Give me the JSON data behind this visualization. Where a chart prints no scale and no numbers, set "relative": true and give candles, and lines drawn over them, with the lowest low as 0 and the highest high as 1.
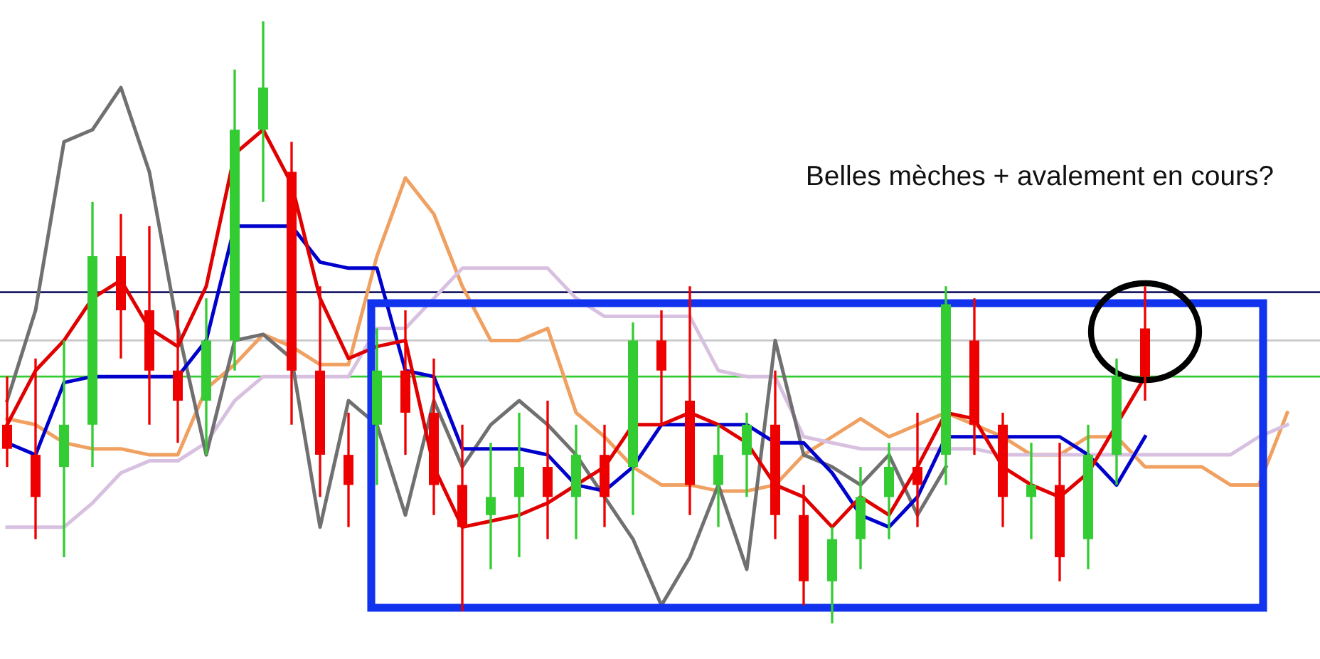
{
  "chart_data": {
    "type": "candlestick",
    "relative": true,
    "legend": false,
    "grid": false,
    "categories": [
      null,
      null,
      null,
      null,
      null,
      null,
      null,
      null,
      null,
      null,
      null,
      null,
      null,
      null,
      null,
      null,
      null,
      null,
      null,
      null,
      null,
      null,
      null,
      null,
      null,
      null,
      null,
      null,
      null,
      null,
      null,
      null,
      null,
      null,
      null,
      null,
      null,
      null,
      null,
      null,
      null,
      null,
      null,
      null,
      null,
      null
    ],
    "ohlc": [
      [
        0.33,
        0.41,
        0.26,
        0.29
      ],
      [
        0.28,
        0.44,
        0.14,
        0.21
      ],
      [
        0.26,
        0.47,
        0.11,
        0.33
      ],
      [
        0.33,
        0.7,
        0.26,
        0.61
      ],
      [
        0.61,
        0.68,
        0.44,
        0.52
      ],
      [
        0.52,
        0.66,
        0.33,
        0.42
      ],
      [
        0.42,
        0.52,
        0.3,
        0.37
      ],
      [
        0.37,
        0.54,
        0.28,
        0.47
      ],
      [
        0.47,
        0.92,
        0.42,
        0.82
      ],
      [
        0.82,
        1,
        0.7,
        0.89
      ],
      [
        0.75,
        0.8,
        0.33,
        0.42
      ],
      [
        0.42,
        0.56,
        0.21,
        0.28
      ],
      [
        0.28,
        0.35,
        0.16,
        0.23
      ],
      [
        0.33,
        0.49,
        0.23,
        0.42
      ],
      [
        0.42,
        0.52,
        0.28,
        0.35
      ],
      [
        0.35,
        0.44,
        0.18,
        0.23
      ],
      [
        0.23,
        0.33,
        0.02,
        0.16
      ],
      [
        0.18,
        0.3,
        0.09,
        0.21
      ],
      [
        0.21,
        0.35,
        0.11,
        0.26
      ],
      [
        0.26,
        0.37,
        0.14,
        0.21
      ],
      [
        0.21,
        0.33,
        0.14,
        0.28
      ],
      [
        0.28,
        0.33,
        0.16,
        0.21
      ],
      [
        0.26,
        0.5,
        0.18,
        0.47
      ],
      [
        0.47,
        0.52,
        0.33,
        0.42
      ],
      [
        0.37,
        0.56,
        0.18,
        0.23
      ],
      [
        0.23,
        0.33,
        0.16,
        0.28
      ],
      [
        0.28,
        0.35,
        0.21,
        0.33
      ],
      [
        0.33,
        0.42,
        0.14,
        0.18
      ],
      [
        0.18,
        0.23,
        0.03,
        0.07
      ],
      [
        0.07,
        0.16,
        0,
        0.14
      ],
      [
        0.14,
        0.26,
        0.09,
        0.21
      ],
      [
        0.21,
        0.3,
        0.14,
        0.26
      ],
      [
        0.26,
        0.35,
        0.16,
        0.23
      ],
      [
        0.28,
        0.56,
        0.23,
        0.53
      ],
      [
        0.47,
        0.54,
        0.28,
        0.33
      ],
      [
        0.33,
        0.35,
        0.16,
        0.21
      ],
      [
        0.21,
        0.3,
        0.14,
        0.23
      ],
      [
        0.23,
        0.3,
        0.07,
        0.11
      ],
      [
        0.14,
        0.33,
        0.09,
        0.28
      ],
      [
        0.28,
        0.44,
        0.23,
        0.41
      ],
      [
        0.49,
        0.56,
        0.37,
        0.41
      ],
      null,
      null,
      null,
      null,
      null
    ],
    "colors": [
      "#ee0000",
      "#ee0000",
      "#33cc33",
      "#33cc33",
      "#ee0000",
      "#ee0000",
      "#ee0000",
      "#33cc33",
      "#33cc33",
      "#33cc33",
      "#ee0000",
      "#ee0000",
      "#ee0000",
      "#33cc33",
      "#ee0000",
      "#ee0000",
      "#ee0000",
      "#33cc33",
      "#33cc33",
      "#ee0000",
      "#33cc33",
      "#ee0000",
      "#33cc33",
      "#ee0000",
      "#ee0000",
      "#33cc33",
      "#33cc33",
      "#ee0000",
      "#ee0000",
      "#33cc33",
      "#33cc33",
      "#33cc33",
      "#ee0000",
      "#33cc33",
      "#ee0000",
      "#ee0000",
      "#33cc33",
      "#ee0000",
      "#33cc33",
      "#33cc33",
      "#ee0000",
      null,
      null,
      null,
      null,
      null
    ],
    "series": [
      {
        "type": "line",
        "color": "#f0a060",
        "values": [
          0.34,
          0.33,
          0.3,
          0.29,
          0.29,
          0.28,
          0.28,
          0.39,
          0.43,
          0.48,
          0.46,
          0.43,
          0.43,
          0.61,
          0.74,
          0.68,
          0.56,
          0.47,
          0.47,
          0.49,
          0.35,
          0.31,
          0.26,
          0.23,
          0.23,
          0.22,
          0.22,
          0.23,
          0.28,
          0.31,
          0.34,
          0.31,
          0.33,
          0.35,
          0.33,
          0.31,
          0.28,
          0.28,
          0.31,
          0.31,
          0.26,
          0.26,
          0.26,
          0.23,
          0.23,
          0.35
        ]
      },
      {
        "type": "line",
        "color": "#d8c0e0",
        "values": [
          0.16,
          0.16,
          0.16,
          0.2,
          0.25,
          0.27,
          0.27,
          0.3,
          0.37,
          0.41,
          0.41,
          0.41,
          0.41,
          0.49,
          0.49,
          0.54,
          0.59,
          0.59,
          0.59,
          0.59,
          0.54,
          0.51,
          0.51,
          0.51,
          0.51,
          0.42,
          0.41,
          0.41,
          0.31,
          0.3,
          0.29,
          0.29,
          0.29,
          0.29,
          0.29,
          0.28,
          0.28,
          0.28,
          0.28,
          0.28,
          0.28,
          0.28,
          0.28,
          0.28,
          0.31,
          0.33
        ]
      },
      {
        "type": "line",
        "color": "#707070",
        "values": [
          0.37,
          0.52,
          0.8,
          0.82,
          0.89,
          0.75,
          0.49,
          0.28,
          0.47,
          0.48,
          0.44,
          0.16,
          0.37,
          0.33,
          0.18,
          0.37,
          0.26,
          0.33,
          0.37,
          0.33,
          0.28,
          0.21,
          0.14,
          0.03,
          0.11,
          0.23,
          0.09,
          0.47,
          0.28,
          0.26,
          0.23,
          0.28,
          0.18,
          0.26,
          null,
          null,
          null,
          null,
          null,
          null,
          null,
          null,
          null,
          null,
          null,
          null
        ]
      },
      {
        "type": "line",
        "color": "#0000cc",
        "values": [
          0.3,
          0.28,
          0.4,
          0.41,
          0.41,
          0.41,
          0.41,
          0.47,
          0.66,
          0.66,
          0.66,
          0.6,
          0.59,
          0.59,
          0.42,
          0.41,
          0.29,
          0.29,
          0.29,
          0.28,
          0.23,
          0.22,
          0.26,
          0.33,
          0.33,
          0.33,
          0.33,
          0.3,
          0.3,
          0.25,
          0.18,
          0.16,
          0.21,
          0.31,
          0.31,
          0.31,
          0.31,
          0.31,
          0.28,
          0.23,
          0.31,
          null,
          null,
          null,
          null,
          null
        ]
      },
      {
        "type": "line",
        "color": "#e00000",
        "values": [
          0.33,
          0.42,
          0.47,
          0.54,
          0.57,
          0.49,
          0.46,
          0.56,
          0.78,
          0.82,
          0.73,
          0.54,
          0.44,
          0.46,
          0.47,
          0.26,
          0.16,
          0.17,
          0.18,
          0.2,
          0.23,
          0.26,
          0.33,
          0.33,
          0.35,
          0.33,
          0.3,
          0.23,
          0.21,
          0.16,
          0.21,
          0.18,
          0.26,
          0.35,
          0.34,
          0.26,
          0.23,
          0.21,
          0.25,
          0.33,
          0.41,
          null,
          null,
          null,
          null,
          null
        ]
      }
    ],
    "ref_lines": [
      {
        "axis": "y",
        "value": 0.55,
        "color": "#1a1a66"
      },
      {
        "axis": "y",
        "value": 0.47,
        "color": "#c8c8c8"
      },
      {
        "axis": "y",
        "value": 0.41,
        "color": "#33cc33"
      }
    ],
    "annotations": [
      "Belles mèches + avalement en cours?"
    ]
  }
}
